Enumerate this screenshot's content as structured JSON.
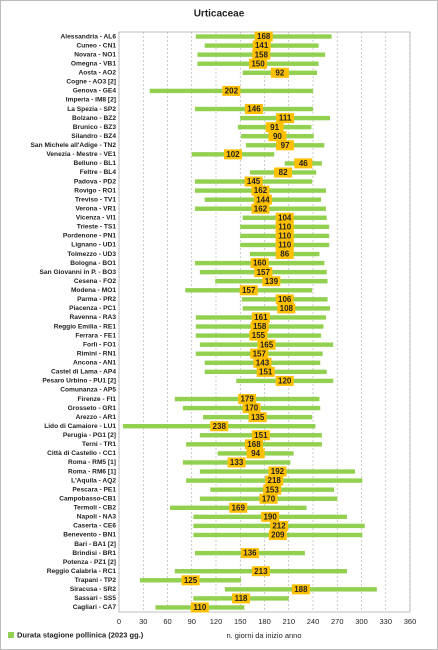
{
  "chart_data": {
    "type": "range_bar",
    "title": "Urticaceae",
    "x_label": "n. giorni da inizio anno",
    "categories": [
      "Alessandria - AL6",
      "Cuneo - CN1",
      "Novara - NO1",
      "Omegna - VB1",
      "Aosta - AO2",
      "Cogne - AO3 [2]",
      "Genova - GE4",
      "Imperia - IM8 [2]",
      "La Spezia - SP2",
      "Bolzano - BZ2",
      "Brunico - BZ3",
      "Silandro - BZ4",
      "San Michele all'Adige - TN2",
      "Venezia - Mestre - VE1",
      "Belluno - BL1",
      "Feltre - BL4",
      "Padova - PD2",
      "Rovigo - RO1",
      "Treviso - TV1",
      "Verona - VR1",
      "Vicenza - VI1",
      "Trieste - TS1",
      "Pordenone - PN1",
      "Lignano - UD1",
      "Tolmezzo - UD3",
      "Bologna - BO1",
      "San Giovanni in P. - BO3",
      "Cesena - FO2",
      "Modena - MO1",
      "Parma - PR2",
      "Piacenza - PC1",
      "Ravenna - RA3",
      "Reggio Emilia - RE1",
      "Ferrara - FE1",
      "Forlì - FO1",
      "Rimini - RN1",
      "Ancona - AN1",
      "Castel di Lama - AP4",
      "Pesaro Urbino - PU1 [2]",
      "Comunanza - AP5",
      "Firenze - FI1",
      "Grosseto - GR1",
      "Arezzo - AR1",
      "Lido di Camaiore - LU1",
      "Perugia - PG1 [2]",
      "Terni - TR1",
      "Città di Castello - CC1",
      "Roma - RM5 [1]",
      "Roma - RM6 [1]",
      "L'Aquila - AQ2",
      "Pescara - PE1",
      "Campobasso-CB1",
      "Termoli - CB2",
      "Napoli - NA3",
      "Caserta - CE6",
      "Benevento - BN1",
      "Bari - BA1 [2]",
      "Brindisi - BR1",
      "Potenza - PZ1 [2]",
      "Reggio Calabria - RC1",
      "Trapani - TP2",
      "Siracusa - SR2",
      "Sassari - SS5",
      "Cagliari - CA7"
    ],
    "series": [
      {
        "name": "Durata stagione pollinica (2023 gg.)",
        "color": "#92d050",
        "label_color": "#ffc000",
        "start": [
          95,
          106,
          97,
          97,
          153,
          null,
          38,
          null,
          94,
          150,
          147,
          151,
          157,
          90,
          205,
          162,
          94,
          94,
          106,
          94,
          153,
          150,
          150,
          150,
          162,
          94,
          100,
          119,
          82,
          152,
          153,
          95,
          95,
          95,
          100,
          95,
          106,
          106,
          145,
          null,
          69,
          79,
          104,
          5,
          100,
          83,
          122,
          79,
          100,
          83,
          113,
          100,
          63,
          92,
          92,
          92,
          null,
          94,
          null,
          69,
          26,
          131,
          92,
          45
        ],
        "values": [
          168,
          141,
          158,
          150,
          92,
          null,
          202,
          null,
          146,
          111,
          91,
          90,
          97,
          102,
          46,
          82,
          145,
          162,
          144,
          162,
          104,
          110,
          110,
          110,
          86,
          160,
          157,
          139,
          157,
          106,
          108,
          161,
          158,
          155,
          165,
          157,
          143,
          151,
          120,
          null,
          179,
          170,
          135,
          238,
          151,
          168,
          94,
          133,
          192,
          218,
          153,
          170,
          169,
          190,
          212,
          209,
          null,
          136,
          null,
          213,
          125,
          188,
          118,
          110
        ]
      }
    ],
    "xlim": [
      0,
      360
    ],
    "xticks": [
      0,
      30,
      60,
      90,
      120,
      150,
      180,
      210,
      240,
      270,
      300,
      330,
      360
    ],
    "grid": true,
    "legend": "bottom-left"
  }
}
